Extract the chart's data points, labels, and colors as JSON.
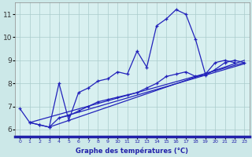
{
  "xlabel": "Graphe des températures (°C)",
  "bg_color": "#cce8e8",
  "plot_bg_color": "#d8f0f0",
  "xaxis_bar_color": "#2222aa",
  "line_color": "#2222bb",
  "xlim": [
    -0.5,
    23.5
  ],
  "ylim": [
    5.7,
    11.5
  ],
  "yticks": [
    6,
    7,
    8,
    9,
    10,
    11
  ],
  "xticks": [
    0,
    1,
    2,
    3,
    4,
    5,
    6,
    7,
    8,
    9,
    10,
    11,
    12,
    13,
    14,
    15,
    16,
    17,
    18,
    19,
    20,
    21,
    22,
    23
  ],
  "line1_x": [
    0,
    1,
    2,
    3,
    4,
    5,
    6,
    7,
    8,
    9,
    10,
    11,
    12,
    13,
    14,
    15,
    16,
    17,
    18,
    19,
    20,
    21,
    22
  ],
  "line1_y": [
    6.9,
    6.3,
    6.2,
    6.1,
    8.0,
    6.4,
    7.6,
    7.8,
    8.1,
    8.2,
    8.5,
    8.4,
    9.4,
    8.7,
    10.5,
    10.8,
    11.2,
    11.0,
    9.9,
    8.4,
    8.9,
    9.0,
    8.9
  ],
  "line2_x": [
    1,
    2,
    3,
    4,
    5,
    6,
    7,
    8,
    9,
    10,
    11,
    12,
    13,
    14,
    15,
    16,
    17,
    18,
    19,
    20,
    21,
    22,
    23
  ],
  "line2_y": [
    6.3,
    6.2,
    6.1,
    6.5,
    6.6,
    6.8,
    7.0,
    7.2,
    7.3,
    7.4,
    7.5,
    7.6,
    7.8,
    8.0,
    8.3,
    8.4,
    8.5,
    8.3,
    8.35,
    8.6,
    8.9,
    9.0,
    8.9
  ],
  "trend1_x": [
    1,
    23
  ],
  "trend1_y": [
    6.3,
    8.9
  ],
  "trend2_x": [
    3,
    23
  ],
  "trend2_y": [
    6.1,
    9.0
  ],
  "trend3_x": [
    4,
    23
  ],
  "trend3_y": [
    6.5,
    8.85
  ]
}
